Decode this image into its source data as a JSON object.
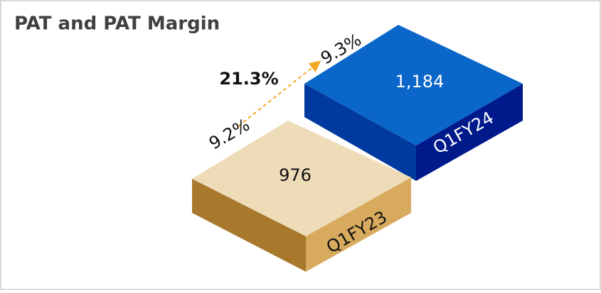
{
  "title": "PAT and PAT Margin",
  "boxes": [
    {
      "label": "Q1FY23",
      "value": "976",
      "margin": "9.2%"
    },
    {
      "label": "Q1FY24",
      "value": "1,184",
      "margin": "9.3%"
    }
  ],
  "growth": "21.3%"
}
